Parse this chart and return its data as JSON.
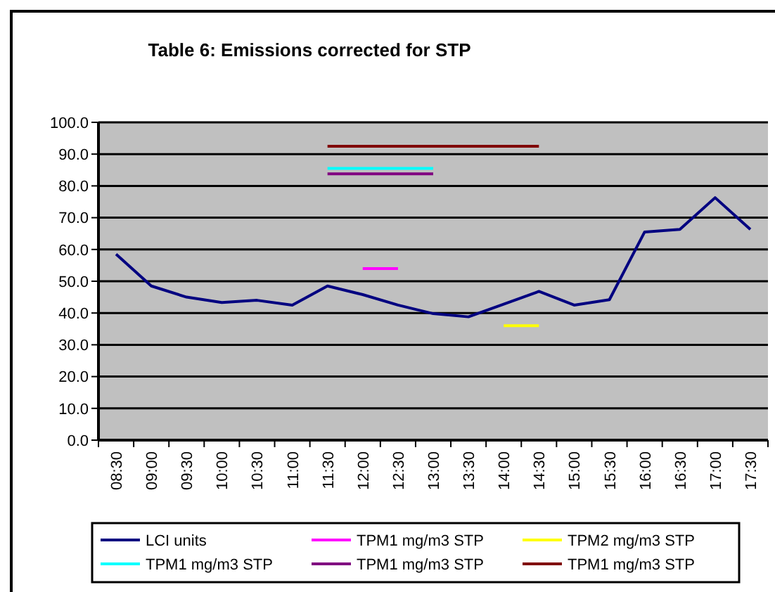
{
  "chart_data": {
    "type": "line",
    "title": "Table 6: Emissions corrected for STP",
    "categories": [
      "08:30",
      "09:00",
      "09:30",
      "10:00",
      "10:30",
      "11:00",
      "11:30",
      "12:00",
      "12:30",
      "13:00",
      "13:30",
      "14:00",
      "14:30",
      "15:00",
      "15:30",
      "16:00",
      "16:30",
      "17:00",
      "17:30"
    ],
    "series": [
      {
        "name": "LCI units",
        "color": "#000080",
        "values": [
          58.5,
          48.5,
          45,
          43.3,
          44,
          42.5,
          48.5,
          45.8,
          42.5,
          39.8,
          38.8,
          42.8,
          46.8,
          42.5,
          44.2,
          65.5,
          66.3,
          76.3,
          66.3
        ]
      },
      {
        "name": "TPM1 mg/m3 STP",
        "color": "#ff00ff",
        "values": [
          null,
          null,
          null,
          null,
          null,
          null,
          null,
          54,
          54,
          null,
          null,
          null,
          null,
          null,
          null,
          null,
          null,
          null,
          null
        ]
      },
      {
        "name": "TPM2 mg/m3 STP",
        "color": "#ffff00",
        "values": [
          null,
          null,
          null,
          null,
          null,
          null,
          null,
          null,
          null,
          null,
          null,
          36,
          36,
          null,
          null,
          null,
          null,
          null,
          null
        ]
      },
      {
        "name": "TPM1 mg/m3 STP",
        "color": "#00ffff",
        "values": [
          null,
          null,
          null,
          null,
          null,
          null,
          85.5,
          85.5,
          85.5,
          85.5,
          null,
          null,
          null,
          null,
          null,
          null,
          null,
          null,
          null
        ]
      },
      {
        "name": "TPM1 mg/m3 STP",
        "color": "#800080",
        "values": [
          null,
          null,
          null,
          null,
          null,
          null,
          83.8,
          83.8,
          83.8,
          83.8,
          null,
          null,
          null,
          null,
          null,
          null,
          null,
          null,
          null
        ]
      },
      {
        "name": "TPM1 mg/m3 STP",
        "color": "#800000",
        "values": [
          null,
          null,
          null,
          null,
          null,
          null,
          92.5,
          92.5,
          92.5,
          92.5,
          92.5,
          92.5,
          92.5,
          null,
          null,
          null,
          null,
          null,
          null
        ]
      }
    ],
    "ylim": [
      0,
      100
    ],
    "yticks": [
      {
        "value": 0,
        "label": "0.0"
      },
      {
        "value": 10,
        "label": "10.0"
      },
      {
        "value": 20,
        "label": "20.0"
      },
      {
        "value": 30,
        "label": "30.0"
      },
      {
        "value": 40,
        "label": "40.0"
      },
      {
        "value": 50,
        "label": "50.0"
      },
      {
        "value": 60,
        "label": "60.0"
      },
      {
        "value": 70,
        "label": "70.0"
      },
      {
        "value": 80,
        "label": "80.0"
      },
      {
        "value": 90,
        "label": "90.0"
      },
      {
        "value": 100,
        "label": "100.0"
      }
    ],
    "grid": "y",
    "legend": "bottom",
    "marker": "none",
    "line_style": "solid"
  }
}
